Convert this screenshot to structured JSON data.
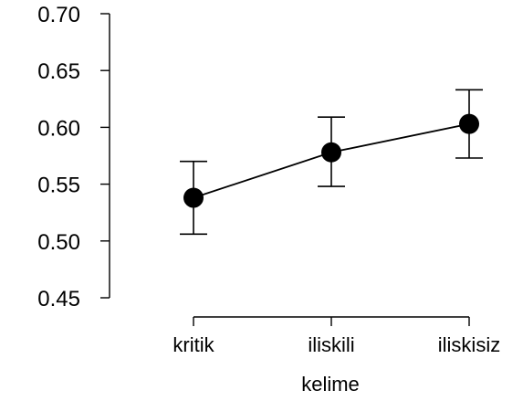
{
  "chart_data": {
    "type": "line",
    "title": "",
    "xlabel": "kelime",
    "ylabel": "",
    "categories": [
      "kritik",
      "iliskili",
      "iliskisiz"
    ],
    "series": [
      {
        "values": [
          0.538,
          0.578,
          0.603
        ],
        "error_lower": [
          0.506,
          0.548,
          0.573
        ],
        "error_upper": [
          0.57,
          0.609,
          0.633
        ]
      }
    ],
    "ylim": [
      0.45,
      0.7
    ],
    "yticks": [
      0.45,
      0.5,
      0.55,
      0.6,
      0.65,
      0.7
    ],
    "ytick_labels": [
      "0.45",
      "0.50",
      "0.55",
      "0.60",
      "0.65",
      "0.70"
    ],
    "grid": false,
    "legend": "none",
    "colors": {
      "line": "#000000",
      "marker": "#000000",
      "axis": "#000000",
      "background": "#ffffff"
    }
  }
}
